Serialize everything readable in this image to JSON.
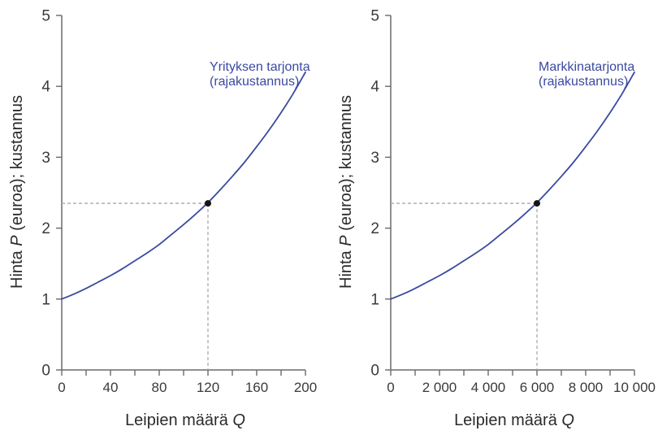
{
  "figure": {
    "colors": {
      "background": "#ffffff",
      "curve_blue": "#3b49a1",
      "axis_gray": "#6a6a6a",
      "tick_label": "#3a3a3a",
      "axis_title": "#2b2b2b",
      "dashed_guide": "#a9a9a9",
      "marker_black": "#151515"
    }
  },
  "left_chart": {
    "curve_label": {
      "line1": "Yrityksen tarjonta",
      "line2": "(rajakustannus)"
    },
    "xlabel": {
      "pre": "Leipien määrä ",
      "italic": "Q"
    },
    "ylabel": {
      "pre": "Hinta ",
      "italic": "P",
      "post": " (euroa); kustannus"
    }
  },
  "right_chart": {
    "curve_label": {
      "line1": "Markkinatarjonta",
      "line2": "(rajakustannus)"
    },
    "xlabel": {
      "pre": "Leipien määrä ",
      "italic": "Q"
    },
    "ylabel": {
      "pre": "Hinta ",
      "italic": "P",
      "post": " (euroa); kustannus"
    }
  },
  "chart_data": [
    {
      "type": "line",
      "title": "Yrityksen tarjonta (rajakustannus)",
      "xlabel": "Leipien määrä Q",
      "ylabel": "Hinta P (euroa); kustannus",
      "xlim": [
        0,
        200
      ],
      "ylim": [
        0,
        5
      ],
      "grid": false,
      "legend_position": "inline-label-top-right",
      "x": [
        0,
        10,
        20,
        30,
        40,
        50,
        60,
        70,
        80,
        90,
        100,
        110,
        120,
        130,
        140,
        150,
        160,
        170,
        180,
        190,
        200
      ],
      "y": [
        1.0,
        1.07,
        1.15,
        1.24,
        1.33,
        1.43,
        1.54,
        1.65,
        1.77,
        1.91,
        2.05,
        2.2,
        2.36,
        2.54,
        2.73,
        2.93,
        3.15,
        3.38,
        3.63,
        3.9,
        4.2
      ],
      "x_major_ticks": [
        0,
        40,
        80,
        120,
        160,
        200
      ],
      "x_tick_labels": [
        "0",
        "40",
        "80",
        "120",
        "160",
        "200"
      ],
      "x_minor_step": 20,
      "y_ticks": [
        0,
        1,
        2,
        3,
        4,
        5
      ],
      "y_tick_labels": [
        "0",
        "1",
        "2",
        "3",
        "4",
        "5"
      ],
      "marker": {
        "x": 120,
        "y": 2.35
      },
      "guides": "dashed-lines-from-marker-to-both-axes"
    },
    {
      "type": "line",
      "title": "Markkinatarjonta (rajakustannus)",
      "xlabel": "Leipien määrä Q",
      "ylabel": "Hinta P (euroa); kustannus",
      "xlim": [
        0,
        10000
      ],
      "ylim": [
        0,
        5
      ],
      "grid": false,
      "legend_position": "inline-label-top-right",
      "x": [
        0,
        500,
        1000,
        1500,
        2000,
        2500,
        3000,
        3500,
        4000,
        4500,
        5000,
        5500,
        6000,
        6500,
        7000,
        7500,
        8000,
        8500,
        9000,
        9500,
        10000
      ],
      "y": [
        1.0,
        1.07,
        1.15,
        1.24,
        1.33,
        1.43,
        1.54,
        1.65,
        1.77,
        1.91,
        2.05,
        2.2,
        2.36,
        2.54,
        2.73,
        2.93,
        3.15,
        3.38,
        3.63,
        3.9,
        4.2
      ],
      "x_major_ticks": [
        0,
        2000,
        4000,
        6000,
        8000,
        10000
      ],
      "x_tick_labels": [
        "0",
        "2 000",
        "4 000",
        "6 000",
        "8 000",
        "10 000"
      ],
      "x_minor_step": 1000,
      "y_ticks": [
        0,
        1,
        2,
        3,
        4,
        5
      ],
      "y_tick_labels": [
        "0",
        "1",
        "2",
        "3",
        "4",
        "5"
      ],
      "marker": {
        "x": 6000,
        "y": 2.35
      },
      "guides": "dashed-lines-from-marker-to-both-axes"
    }
  ]
}
